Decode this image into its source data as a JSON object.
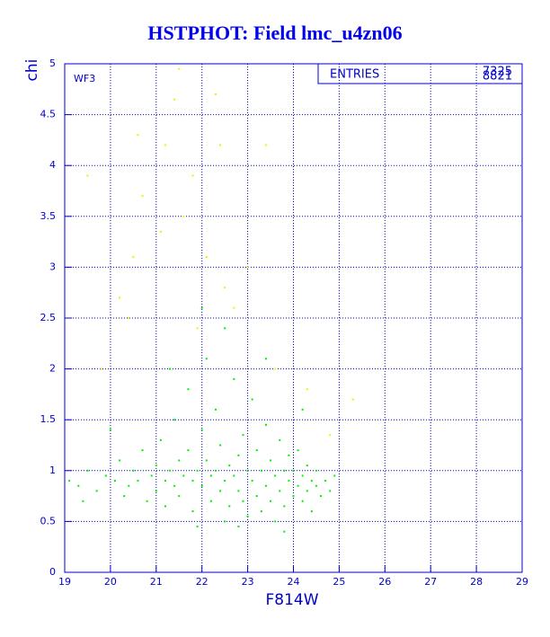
{
  "chart_data": {
    "type": "scatter",
    "title": "HSTPHOT: Field lmc_u4zn06",
    "xlabel": "F814W",
    "ylabel": "chi",
    "annotation": "WF3",
    "stats": {
      "label": "ENTRIES",
      "values": [
        7325,
        8821
      ]
    },
    "xlim": [
      19,
      29
    ],
    "ylim": [
      0,
      5
    ],
    "xticks": [
      19,
      20,
      21,
      22,
      23,
      24,
      25,
      26,
      27,
      28,
      29
    ],
    "yticks": [
      0,
      0.5,
      1,
      1.5,
      2,
      2.5,
      3,
      3.5,
      4,
      4.5,
      5
    ],
    "grid": true,
    "series": [
      {
        "color": "#00ee00",
        "x": [
          19.1,
          19.3,
          19.5,
          19.7,
          19.9,
          20.1,
          20.2,
          20.3,
          20.4,
          20.5,
          20.6,
          20.7,
          20.8,
          20.9,
          21.0,
          21.0,
          21.1,
          21.2,
          21.2,
          21.3,
          21.4,
          21.4,
          21.5,
          21.5,
          21.6,
          21.7,
          21.7,
          21.8,
          21.8,
          21.9,
          22.0,
          22.0,
          22.1,
          22.1,
          22.2,
          22.2,
          22.3,
          22.3,
          22.4,
          22.4,
          22.5,
          22.5,
          22.6,
          22.6,
          22.7,
          22.7,
          22.8,
          22.8,
          22.9,
          22.9,
          23.0,
          23.0,
          23.1,
          23.1,
          23.2,
          23.2,
          23.3,
          23.3,
          23.4,
          23.4,
          23.5,
          23.5,
          23.6,
          23.6,
          23.7,
          23.7,
          23.8,
          23.8,
          23.9,
          23.9,
          24.0,
          24.0,
          24.1,
          24.1,
          24.2,
          24.2,
          24.3,
          24.3,
          24.4,
          24.4,
          24.5,
          24.5,
          24.6,
          24.7,
          24.8,
          24.9,
          21.9,
          22.5,
          23.8,
          19.4,
          20.0,
          21.3,
          22.0,
          23.4,
          24.2,
          22.8
        ],
        "values": [
          0.9,
          0.85,
          1.0,
          0.8,
          0.95,
          0.9,
          1.1,
          0.75,
          0.85,
          1.0,
          0.9,
          1.2,
          0.7,
          0.95,
          1.05,
          0.8,
          1.3,
          0.9,
          0.65,
          1.0,
          1.5,
          0.85,
          1.1,
          0.75,
          0.95,
          1.8,
          1.2,
          0.9,
          0.6,
          1.0,
          1.4,
          0.85,
          2.1,
          1.1,
          0.95,
          0.7,
          1.6,
          1.0,
          0.8,
          1.25,
          2.4,
          0.9,
          1.05,
          0.65,
          1.9,
          0.95,
          1.15,
          0.8,
          1.35,
          0.7,
          1.0,
          0.55,
          1.7,
          0.9,
          1.2,
          0.75,
          1.0,
          0.6,
          1.45,
          0.85,
          1.1,
          0.7,
          0.95,
          0.5,
          1.3,
          0.8,
          1.0,
          0.65,
          0.9,
          1.15,
          0.75,
          1.0,
          0.85,
          1.2,
          0.7,
          0.95,
          0.8,
          1.05,
          0.9,
          0.6,
          0.85,
          1.0,
          0.75,
          0.9,
          0.8,
          0.95,
          0.45,
          0.5,
          0.4,
          0.7,
          1.4,
          2.0,
          2.6,
          2.1,
          1.6,
          0.45
        ]
      },
      {
        "color": "#eeee00",
        "x": [
          19.5,
          20.5,
          20.7,
          21.1,
          21.2,
          21.4,
          21.8,
          22.3,
          22.5,
          22.1,
          21.5,
          22.4,
          23.4,
          23.0,
          20.4,
          19.8,
          24.3,
          24.8,
          21.9,
          22.7,
          20.2,
          23.6,
          21.6,
          20.6,
          25.3
        ],
        "values": [
          3.9,
          3.1,
          3.7,
          3.35,
          4.2,
          4.65,
          3.9,
          4.7,
          2.8,
          3.1,
          4.95,
          4.2,
          4.2,
          3.0,
          2.5,
          2.0,
          1.8,
          1.35,
          2.4,
          2.6,
          2.7,
          2.0,
          3.5,
          4.3,
          1.7
        ]
      }
    ]
  }
}
